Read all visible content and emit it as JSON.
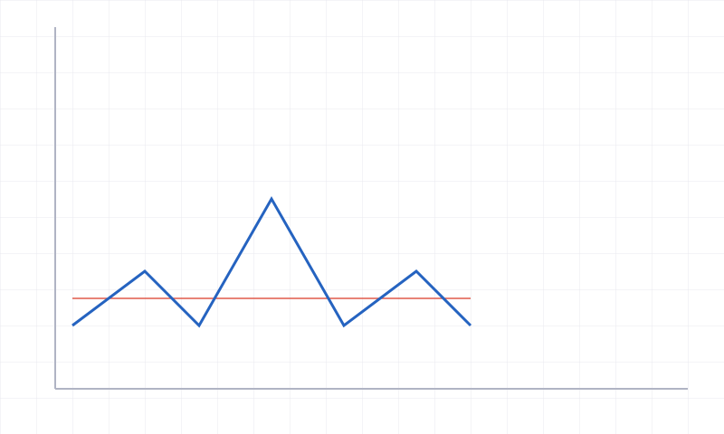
{
  "chart_data": {
    "type": "line",
    "x": [
      0,
      4,
      7,
      11,
      15,
      19,
      22
    ],
    "series": [
      {
        "color": "#2563c0",
        "values": [
          3.5,
          6.5,
          3.5,
          10.5,
          3.5,
          6.5,
          3.5
        ]
      }
    ],
    "hline": {
      "value": 5,
      "color": "#e05a4a"
    },
    "xlim": [
      -0.95,
      34
    ],
    "ylim": [
      0,
      20
    ],
    "axis_color": "#b0b4c4",
    "grid": true
  }
}
